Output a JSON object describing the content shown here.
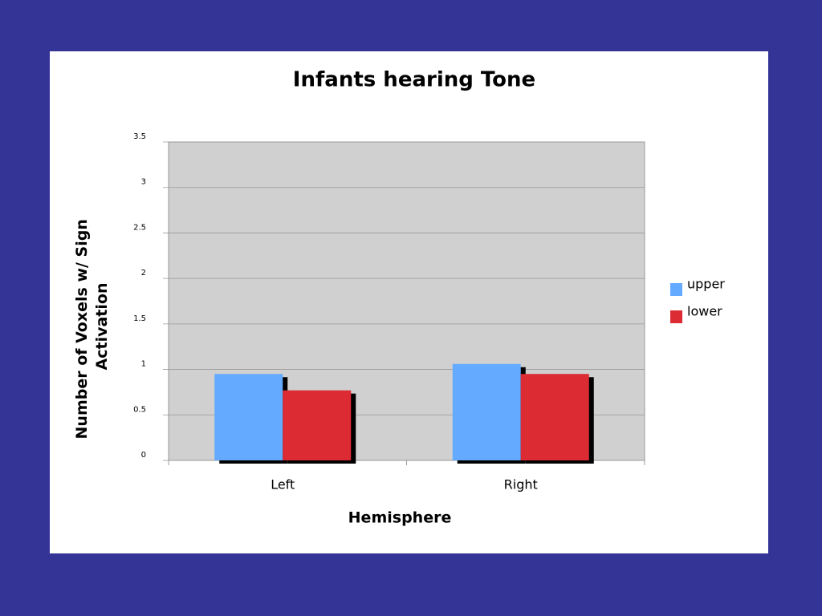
{
  "chart_data": {
    "type": "bar",
    "title": "Infants hearing Tone",
    "xlabel": "Hemisphere",
    "ylabel": [
      "Number of Voxels w/ Sign",
      "Activation"
    ],
    "categories": [
      "Left",
      "Right"
    ],
    "series": [
      {
        "name": "upper",
        "color": "#64aaff",
        "values": [
          0.95,
          1.06
        ]
      },
      {
        "name": "lower",
        "color": "#dc2b32",
        "values": [
          0.77,
          0.95
        ]
      }
    ],
    "ylim": [
      0,
      3.5
    ],
    "yticks": [
      0,
      0.5,
      1,
      1.5,
      2,
      2.5,
      3,
      3.5
    ],
    "grid": true,
    "legend": "right"
  }
}
